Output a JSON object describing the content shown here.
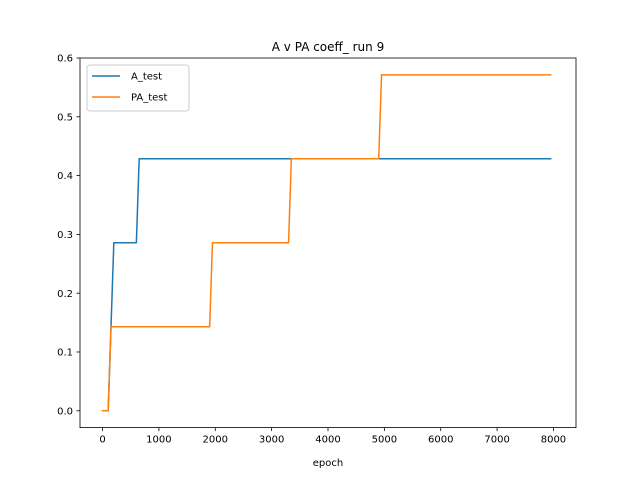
{
  "chart_data": {
    "type": "line",
    "title": "A v PA coeff_ run 9",
    "xlabel": "epoch",
    "ylabel": "",
    "xlim": [
      -400,
      8400
    ],
    "ylim": [
      -0.0286,
      0.6
    ],
    "xticks": [
      0,
      1000,
      2000,
      3000,
      4000,
      5000,
      6000,
      7000,
      8000
    ],
    "yticks": [
      0.0,
      0.1,
      0.2,
      0.3,
      0.4,
      0.5,
      0.6
    ],
    "xtick_labels": [
      "0",
      "1000",
      "2000",
      "3000",
      "4000",
      "5000",
      "6000",
      "7000",
      "8000"
    ],
    "ytick_labels": [
      "0.0",
      "0.1",
      "0.2",
      "0.3",
      "0.4",
      "0.5",
      "0.6"
    ],
    "grid": false,
    "legend_position": "top-left",
    "series": [
      {
        "name": "A_test",
        "color": "#1f77b4",
        "x": [
          0,
          100,
          200,
          600,
          650,
          7950
        ],
        "y": [
          0.0,
          0.0,
          0.2857,
          0.2857,
          0.4286,
          0.4286
        ]
      },
      {
        "name": "PA_test",
        "color": "#ff7f0e",
        "x": [
          0,
          100,
          150,
          1900,
          1950,
          3300,
          3350,
          4900,
          4950,
          7950
        ],
        "y": [
          0.0,
          0.0,
          0.1429,
          0.1429,
          0.2857,
          0.2857,
          0.4286,
          0.4286,
          0.5714,
          0.5714
        ]
      }
    ]
  }
}
